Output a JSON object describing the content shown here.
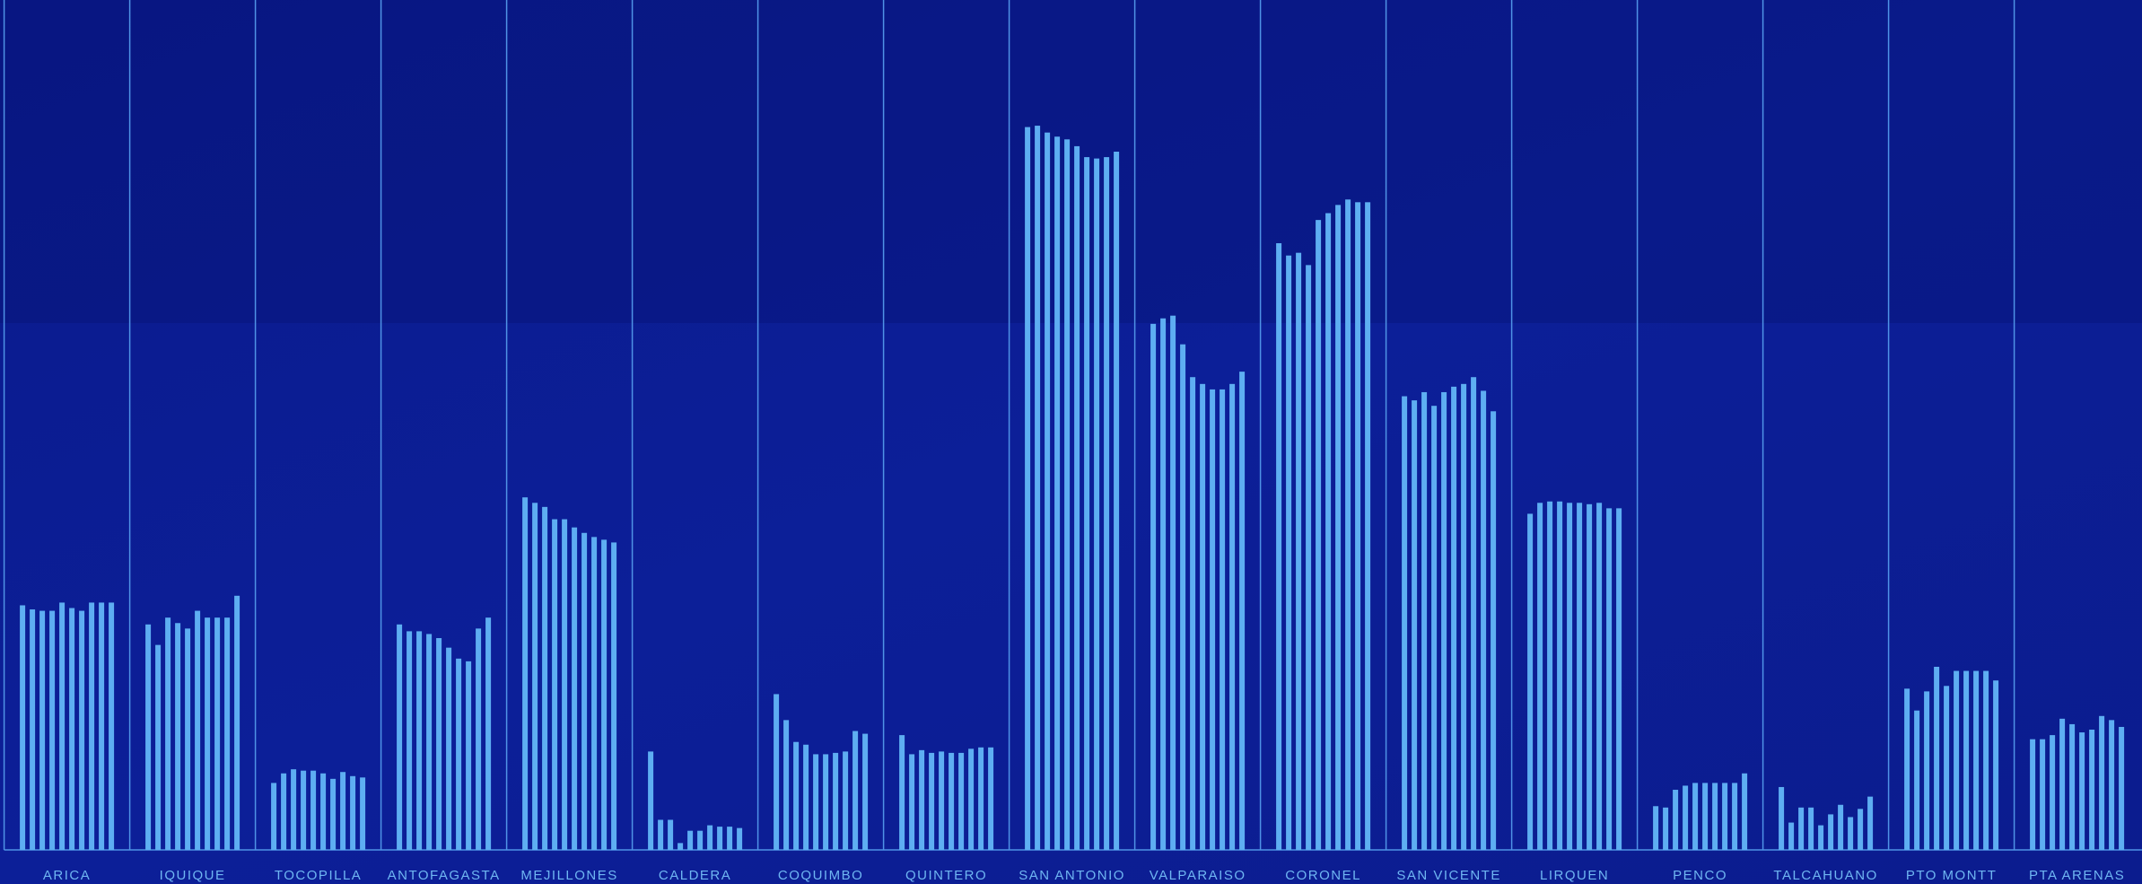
{
  "chart_data": {
    "type": "bar",
    "categories": [
      "ARICA",
      "IQUIQUE",
      "TOCOPILLA",
      "ANTOFAGASTA",
      "MEJILLONES",
      "CALDERA",
      "COQUIMBO",
      "QUINTERO",
      "SAN ANTONIO",
      "VALPARAISO",
      "CORONEL",
      "SAN VICENTE",
      "LIRQUEN",
      "PENCO",
      "TALCAHUANO",
      "PTO MONTT",
      "PTA ARENAS"
    ],
    "values": [
      [
        179,
        176,
        175,
        175,
        181,
        177,
        175,
        181,
        181,
        181
      ],
      [
        165,
        150,
        170,
        166,
        162,
        175,
        170,
        170,
        170,
        186
      ],
      [
        49,
        56,
        59,
        58,
        58,
        56,
        52,
        57,
        54,
        53
      ],
      [
        165,
        160,
        160,
        158,
        155,
        148,
        140,
        138,
        162,
        170
      ],
      [
        258,
        254,
        251,
        242,
        242,
        236,
        232,
        229,
        227,
        225
      ],
      [
        72,
        22,
        22,
        5,
        14,
        14,
        18,
        17,
        17,
        16
      ],
      [
        114,
        95,
        79,
        77,
        70,
        70,
        71,
        72,
        87,
        85
      ],
      [
        84,
        70,
        73,
        71,
        72,
        71,
        71,
        74,
        75,
        75
      ],
      [
        529,
        530,
        525,
        522,
        520,
        515,
        507,
        506,
        507,
        511
      ],
      [
        385,
        389,
        391,
        370,
        346,
        341,
        337,
        337,
        341,
        350
      ],
      [
        444,
        435,
        437,
        428,
        461,
        466,
        472,
        476,
        474,
        474
      ],
      [
        332,
        329,
        335,
        325,
        335,
        339,
        341,
        346,
        336,
        321
      ],
      [
        246,
        254,
        255,
        255,
        254,
        254,
        253,
        254,
        250,
        250
      ],
      [
        32,
        31,
        44,
        47,
        49,
        49,
        49,
        49,
        49,
        56
      ],
      [
        46,
        20,
        31,
        31,
        18,
        26,
        33,
        24,
        30,
        39
      ],
      [
        118,
        102,
        116,
        134,
        120,
        131,
        131,
        131,
        131,
        124
      ],
      [
        81,
        81,
        84,
        96,
        92,
        86,
        88,
        98,
        95,
        90
      ]
    ],
    "color": "#5eaef2",
    "ylim": [
      0,
      622
    ]
  }
}
